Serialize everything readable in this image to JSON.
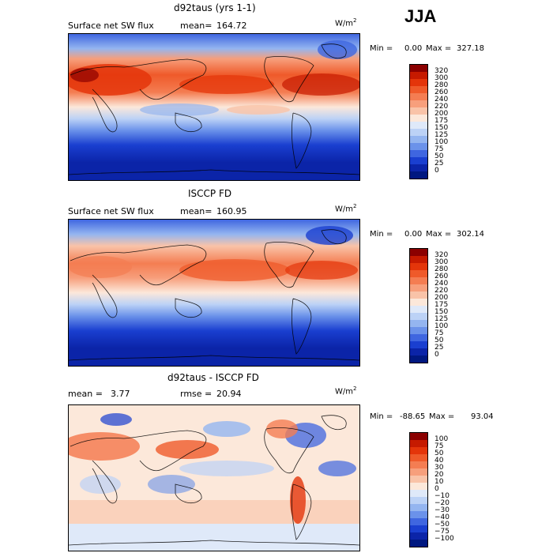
{
  "season": "JJA",
  "panels": [
    {
      "title": "d92taus (yrs 1-1)",
      "left_label": "Surface net SW flux",
      "stat_label": "mean=",
      "stat_value": "164.72",
      "stat2_label": "",
      "stat2_value": "",
      "units": "W/m",
      "units_sup": "2",
      "min_label": "Min =",
      "min_value": "0.00",
      "max_label": "Max =",
      "max_value": "327.18",
      "colorbar": {
        "levels": [
          "320",
          "300",
          "280",
          "260",
          "240",
          "220",
          "200",
          "175",
          "150",
          "125",
          "100",
          "75",
          "50",
          "25",
          "0"
        ],
        "colors": [
          "#8b0000",
          "#c61a00",
          "#e4350a",
          "#ef5a2a",
          "#f47d52",
          "#f79f7c",
          "#f9c3a8",
          "#fce8da",
          "#dfe9f9",
          "#bcd2f6",
          "#94b5f0",
          "#6b92ea",
          "#3f66e0",
          "#1a3fd0",
          "#0b24a8",
          "#001880"
        ]
      },
      "chart_data": {
        "type": "heatmap",
        "field": "Surface net SW flux (model)",
        "mean": 164.72,
        "min": 0.0,
        "max": 327.18,
        "contour_levels": [
          0,
          25,
          50,
          75,
          100,
          125,
          150,
          175,
          200,
          220,
          240,
          260,
          280,
          300,
          320
        ]
      }
    },
    {
      "title": "ISCCP FD",
      "left_label": "Surface net SW flux",
      "stat_label": "mean=",
      "stat_value": "160.95",
      "stat2_label": "",
      "stat2_value": "",
      "units": "W/m",
      "units_sup": "2",
      "min_label": "Min =",
      "min_value": "0.00",
      "max_label": "Max =",
      "max_value": "302.14",
      "colorbar": {
        "levels": [
          "320",
          "300",
          "280",
          "260",
          "240",
          "220",
          "200",
          "175",
          "150",
          "125",
          "100",
          "75",
          "50",
          "25",
          "0"
        ],
        "colors": [
          "#8b0000",
          "#c61a00",
          "#e4350a",
          "#ef5a2a",
          "#f47d52",
          "#f79f7c",
          "#f9c3a8",
          "#fce8da",
          "#dfe9f9",
          "#bcd2f6",
          "#94b5f0",
          "#6b92ea",
          "#3f66e0",
          "#1a3fd0",
          "#0b24a8",
          "#001880"
        ]
      },
      "chart_data": {
        "type": "heatmap",
        "field": "Surface net SW flux (observations)",
        "mean": 160.95,
        "min": 0.0,
        "max": 302.14,
        "contour_levels": [
          0,
          25,
          50,
          75,
          100,
          125,
          150,
          175,
          200,
          220,
          240,
          260,
          280,
          300,
          320
        ]
      }
    },
    {
      "title": "d92taus - ISCCP FD",
      "left_label": "mean =",
      "stat_label": "",
      "stat_value": "3.77",
      "stat2_label": "rmse =",
      "stat2_value": "20.94",
      "units": "W/m",
      "units_sup": "2",
      "min_label": "Min =",
      "min_value": "-88.65",
      "max_label": "Max =",
      "max_value": "93.04",
      "colorbar": {
        "levels": [
          "100",
          "75",
          "50",
          "40",
          "30",
          "20",
          "10",
          "0",
          "−10",
          "−20",
          "−30",
          "−40",
          "−50",
          "−75",
          "−100"
        ],
        "colors": [
          "#8b0000",
          "#c61a00",
          "#e4350a",
          "#ef5a2a",
          "#f47d52",
          "#f79f7c",
          "#f9c3a8",
          "#fce8da",
          "#dfe9f9",
          "#bcd2f6",
          "#94b5f0",
          "#6b92ea",
          "#3f66e0",
          "#1a3fd0",
          "#0b24a8",
          "#001880"
        ]
      },
      "chart_data": {
        "type": "heatmap",
        "field": "Surface net SW flux difference",
        "mean": 3.77,
        "rmse": 20.94,
        "min": -88.65,
        "max": 93.04,
        "contour_levels": [
          -100,
          -75,
          -50,
          -40,
          -30,
          -20,
          -10,
          0,
          10,
          20,
          30,
          40,
          50,
          75,
          100
        ]
      }
    }
  ]
}
